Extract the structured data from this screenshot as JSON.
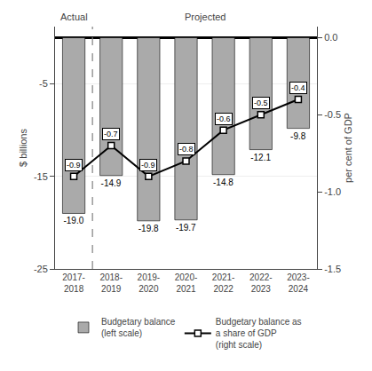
{
  "chart_data": {
    "type": "bar",
    "categories": [
      "2017-\n2018",
      "2018-\n2019",
      "2019-\n2020",
      "2020-\n2021",
      "2021-\n2022",
      "2022-\n2023",
      "2023-\n2024"
    ],
    "series": [
      {
        "name": "Budgetary balance\n(left scale)",
        "type": "bar",
        "color": "#aaaaaa",
        "values": [
          -19.0,
          -14.9,
          -19.8,
          -19.7,
          -14.8,
          -12.1,
          -9.8
        ],
        "value_labels": [
          "-19.0",
          "-14.9",
          "-19.8",
          "-19.7",
          "-14.8",
          "-12.1",
          "-9.8"
        ]
      },
      {
        "name": "Budgetary balance as\na share of GDP\n(right scale)",
        "type": "line",
        "axis": "y2",
        "color": "#000000",
        "marker": "square",
        "values": [
          -0.9,
          -0.7,
          -0.9,
          -0.8,
          -0.6,
          -0.5,
          -0.4
        ]
      }
    ],
    "ylabel": "$ billions",
    "y2label": "per cent of GDP",
    "annotations": [
      "Actual",
      "Projected"
    ],
    "ylim": [
      -25,
      1.2
    ],
    "yticks": [
      -5,
      -15,
      -25
    ],
    "y2lim": [
      -1.5,
      0.072
    ],
    "y2ticks": [
      {
        "value": 0,
        "label": "0.0"
      },
      -0.5,
      {
        "value": -1,
        "label": "-1.0"
      },
      -1.5
    ],
    "grid": true,
    "legend": "bottom",
    "data_labels": true
  }
}
